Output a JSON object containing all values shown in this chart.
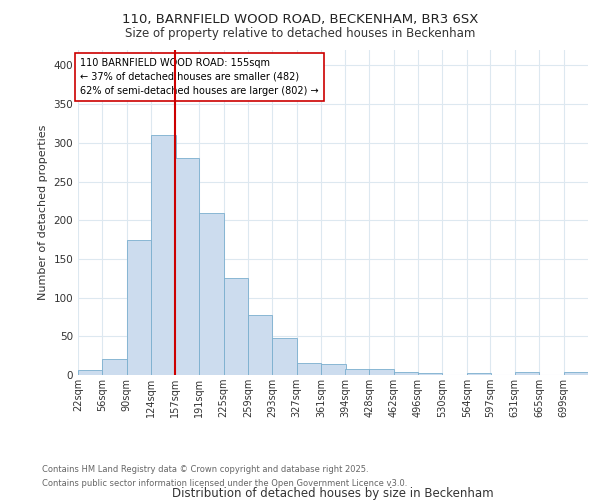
{
  "title_line1": "110, BARNFIELD WOOD ROAD, BECKENHAM, BR3 6SX",
  "title_line2": "Size of property relative to detached houses in Beckenham",
  "xlabel": "Distribution of detached houses by size in Beckenham",
  "ylabel": "Number of detached properties",
  "bin_labels": [
    "22sqm",
    "56sqm",
    "90sqm",
    "124sqm",
    "157sqm",
    "191sqm",
    "225sqm",
    "259sqm",
    "293sqm",
    "327sqm",
    "361sqm",
    "394sqm",
    "428sqm",
    "462sqm",
    "496sqm",
    "530sqm",
    "564sqm",
    "597sqm",
    "631sqm",
    "665sqm",
    "699sqm"
  ],
  "bin_edges": [
    22,
    56,
    90,
    124,
    157,
    191,
    225,
    259,
    293,
    327,
    361,
    394,
    428,
    462,
    496,
    530,
    564,
    597,
    631,
    665,
    699
  ],
  "bar_heights": [
    6,
    21,
    175,
    310,
    280,
    210,
    125,
    78,
    48,
    15,
    14,
    8,
    8,
    4,
    2,
    0,
    3,
    0,
    4,
    0,
    4
  ],
  "bar_color": "#ccdcee",
  "bar_edge_color": "#7aaece",
  "vline_x": 157,
  "vline_color": "#cc0000",
  "annotation_title": "110 BARNFIELD WOOD ROAD: 155sqm",
  "annotation_line1": "← 37% of detached houses are smaller (482)",
  "annotation_line2": "62% of semi-detached houses are larger (802) →",
  "annotation_box_color": "#ffffff",
  "annotation_box_edge": "#cc0000",
  "ylim": [
    0,
    420
  ],
  "yticks": [
    0,
    50,
    100,
    150,
    200,
    250,
    300,
    350,
    400
  ],
  "footer_line1": "Contains HM Land Registry data © Crown copyright and database right 2025.",
  "footer_line2": "Contains public sector information licensed under the Open Government Licence v3.0.",
  "background_color": "#ffffff",
  "grid_color": "#dde8f0"
}
